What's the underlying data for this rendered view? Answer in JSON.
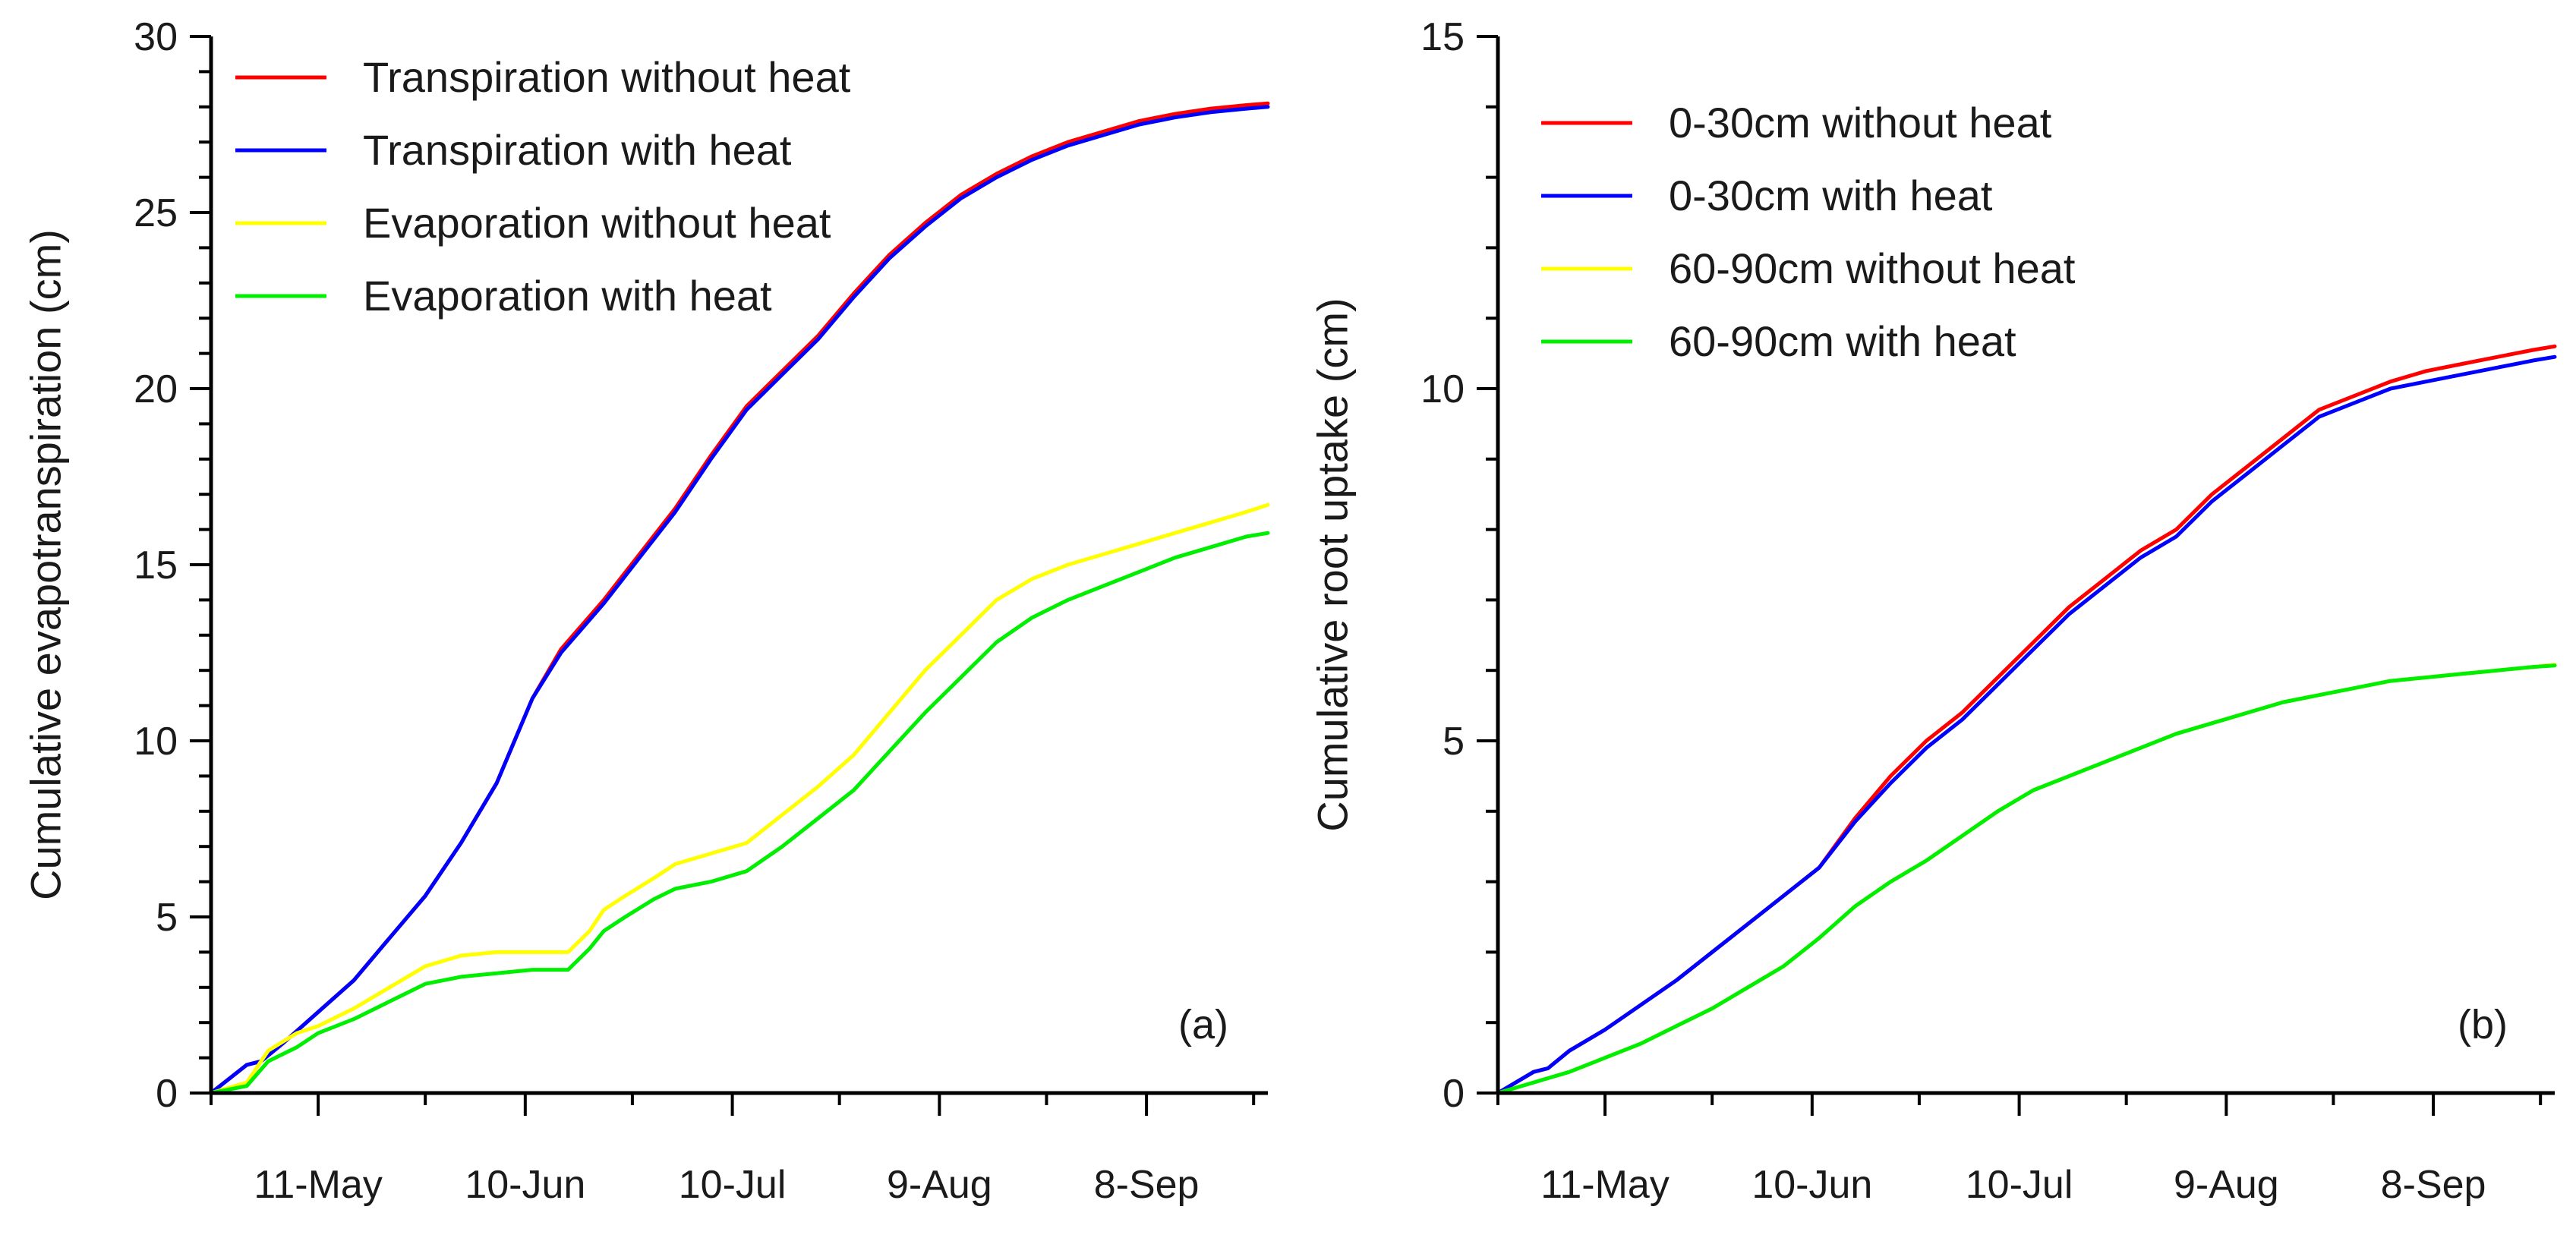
{
  "chart_data": [
    {
      "type": "line",
      "panel_label": "(a)",
      "xlabel": "",
      "ylabel": "Cumulative evapotranspiration (cm)",
      "xlim": [
        0,
        148
      ],
      "ylim": [
        0,
        30
      ],
      "y_ticks": [
        0,
        5,
        10,
        15,
        20,
        25,
        30
      ],
      "y_minor_step": 1,
      "x_ticks": [
        {
          "day": 15,
          "label": "11-May"
        },
        {
          "day": 44,
          "label": "10-Jun"
        },
        {
          "day": 73,
          "label": "10-Jul"
        },
        {
          "day": 102,
          "label": "9-Aug"
        },
        {
          "day": 131,
          "label": "8-Sep"
        }
      ],
      "x_minor_days": [
        0,
        30,
        59,
        88,
        117,
        146
      ],
      "grid": false,
      "legend_position": "top-left",
      "series": [
        {
          "name": "Transpiration without heat",
          "color": "#ff0000",
          "x": [
            0,
            5,
            7,
            10,
            15,
            20,
            25,
            30,
            35,
            40,
            45,
            49,
            55,
            60,
            65,
            70,
            75,
            80,
            85,
            90,
            95,
            100,
            105,
            110,
            115,
            120,
            125,
            130,
            135,
            140,
            145,
            148
          ],
          "y": [
            0,
            0.8,
            0.9,
            1.4,
            2.3,
            3.2,
            4.4,
            5.6,
            7.1,
            8.8,
            11.2,
            12.6,
            14.0,
            15.3,
            16.6,
            18.1,
            19.5,
            20.5,
            21.5,
            22.7,
            23.8,
            24.7,
            25.5,
            26.1,
            26.6,
            27.0,
            27.3,
            27.6,
            27.8,
            27.95,
            28.05,
            28.1
          ]
        },
        {
          "name": "Transpiration with heat",
          "color": "#0000ff",
          "x": [
            0,
            5,
            7,
            10,
            15,
            20,
            25,
            30,
            35,
            40,
            45,
            49,
            55,
            60,
            65,
            70,
            75,
            80,
            85,
            90,
            95,
            100,
            105,
            110,
            115,
            120,
            125,
            130,
            135,
            140,
            145,
            148
          ],
          "y": [
            0,
            0.8,
            0.9,
            1.4,
            2.3,
            3.2,
            4.4,
            5.6,
            7.1,
            8.8,
            11.2,
            12.5,
            13.9,
            15.2,
            16.5,
            18.0,
            19.4,
            20.4,
            21.4,
            22.6,
            23.7,
            24.6,
            25.4,
            26.0,
            26.5,
            26.9,
            27.2,
            27.5,
            27.7,
            27.85,
            27.95,
            28.0
          ]
        },
        {
          "name": "Evaporation without heat",
          "color": "#ffff00",
          "x": [
            0,
            5,
            8,
            12,
            15,
            20,
            25,
            30,
            35,
            40,
            45,
            50,
            53,
            55,
            58,
            62,
            65,
            70,
            75,
            80,
            85,
            90,
            95,
            100,
            105,
            110,
            115,
            120,
            125,
            130,
            135,
            140,
            145,
            148
          ],
          "y": [
            0,
            0.3,
            1.2,
            1.7,
            1.9,
            2.4,
            3.0,
            3.6,
            3.9,
            4.0,
            4.0,
            4.0,
            4.6,
            5.2,
            5.6,
            6.1,
            6.5,
            6.8,
            7.1,
            7.9,
            8.7,
            9.6,
            10.8,
            12.0,
            13.0,
            14.0,
            14.6,
            15.0,
            15.3,
            15.6,
            15.9,
            16.2,
            16.5,
            16.7
          ]
        },
        {
          "name": "Evaporation with heat",
          "color": "#00ee00",
          "x": [
            0,
            5,
            8,
            12,
            15,
            20,
            25,
            30,
            35,
            40,
            45,
            50,
            53,
            55,
            58,
            62,
            65,
            70,
            75,
            80,
            85,
            90,
            95,
            100,
            105,
            110,
            115,
            120,
            125,
            130,
            135,
            140,
            145,
            148
          ],
          "y": [
            0,
            0.2,
            0.9,
            1.3,
            1.7,
            2.1,
            2.6,
            3.1,
            3.3,
            3.4,
            3.5,
            3.5,
            4.1,
            4.6,
            5.0,
            5.5,
            5.8,
            6.0,
            6.3,
            7.0,
            7.8,
            8.6,
            9.7,
            10.8,
            11.8,
            12.8,
            13.5,
            14.0,
            14.4,
            14.8,
            15.2,
            15.5,
            15.8,
            15.9
          ]
        }
      ]
    },
    {
      "type": "line",
      "panel_label": "(b)",
      "xlabel": "",
      "ylabel": "Cumulative root uptake (cm)",
      "xlim": [
        0,
        148
      ],
      "ylim": [
        0,
        15
      ],
      "y_ticks": [
        0,
        5,
        10,
        15
      ],
      "y_minor_step": 1,
      "x_ticks": [
        {
          "day": 15,
          "label": "11-May"
        },
        {
          "day": 44,
          "label": "10-Jun"
        },
        {
          "day": 73,
          "label": "10-Jul"
        },
        {
          "day": 102,
          "label": "9-Aug"
        },
        {
          "day": 131,
          "label": "8-Sep"
        }
      ],
      "x_minor_days": [
        0,
        30,
        59,
        88,
        117,
        146
      ],
      "grid": false,
      "legend_position": "top-left",
      "series": [
        {
          "name": "0-30cm without heat",
          "color": "#ff0000",
          "x": [
            0,
            5,
            7,
            10,
            15,
            20,
            25,
            30,
            35,
            40,
            45,
            50,
            55,
            60,
            65,
            70,
            75,
            80,
            85,
            90,
            95,
            100,
            105,
            110,
            115,
            120,
            125,
            130,
            135,
            140,
            145,
            148
          ],
          "y": [
            0,
            0.3,
            0.35,
            0.6,
            0.9,
            1.25,
            1.6,
            2.0,
            2.4,
            2.8,
            3.2,
            3.9,
            4.5,
            5.0,
            5.4,
            5.9,
            6.4,
            6.9,
            7.3,
            7.7,
            8.0,
            8.5,
            8.9,
            9.3,
            9.7,
            9.9,
            10.1,
            10.25,
            10.35,
            10.45,
            10.55,
            10.6
          ]
        },
        {
          "name": "0-30cm with heat",
          "color": "#0000ff",
          "x": [
            0,
            5,
            7,
            10,
            15,
            20,
            25,
            30,
            35,
            40,
            45,
            50,
            55,
            60,
            65,
            70,
            75,
            80,
            85,
            90,
            95,
            100,
            105,
            110,
            115,
            120,
            125,
            130,
            135,
            140,
            145,
            148
          ],
          "y": [
            0,
            0.3,
            0.35,
            0.6,
            0.9,
            1.25,
            1.6,
            2.0,
            2.4,
            2.8,
            3.2,
            3.85,
            4.4,
            4.9,
            5.3,
            5.8,
            6.3,
            6.8,
            7.2,
            7.6,
            7.9,
            8.4,
            8.8,
            9.2,
            9.6,
            9.8,
            10.0,
            10.1,
            10.2,
            10.3,
            10.4,
            10.45
          ]
        },
        {
          "name": "60-90cm without heat",
          "color": "#ffff00",
          "x": [
            0,
            5,
            10,
            15,
            20,
            25,
            30,
            35,
            40,
            45,
            50,
            55,
            60,
            65,
            70,
            75,
            80,
            85,
            90,
            95,
            100,
            105,
            110,
            115,
            120,
            125,
            130,
            135,
            140,
            145,
            148
          ],
          "y": [
            0,
            0.15,
            0.3,
            0.5,
            0.7,
            0.95,
            1.2,
            1.5,
            1.8,
            2.2,
            2.65,
            3.0,
            3.3,
            3.65,
            4.0,
            4.3,
            4.5,
            4.7,
            4.9,
            5.1,
            5.25,
            5.4,
            5.55,
            5.65,
            5.75,
            5.85,
            5.9,
            5.95,
            6.0,
            6.05,
            6.08
          ]
        },
        {
          "name": "60-90cm with heat",
          "color": "#00ee00",
          "x": [
            0,
            5,
            10,
            15,
            20,
            25,
            30,
            35,
            40,
            45,
            50,
            55,
            60,
            65,
            70,
            75,
            80,
            85,
            90,
            95,
            100,
            105,
            110,
            115,
            120,
            125,
            130,
            135,
            140,
            145,
            148
          ],
          "y": [
            0,
            0.15,
            0.3,
            0.5,
            0.7,
            0.95,
            1.2,
            1.5,
            1.8,
            2.2,
            2.65,
            3.0,
            3.3,
            3.65,
            4.0,
            4.3,
            4.5,
            4.7,
            4.9,
            5.1,
            5.25,
            5.4,
            5.55,
            5.65,
            5.75,
            5.85,
            5.9,
            5.95,
            6.0,
            6.05,
            6.07
          ]
        }
      ]
    }
  ]
}
